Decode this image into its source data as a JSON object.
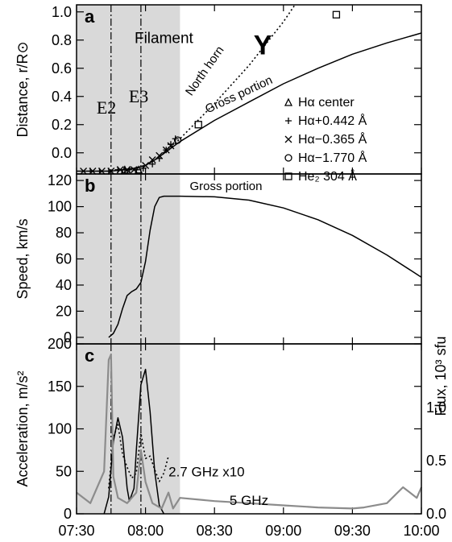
{
  "chart_data": {
    "type": "line",
    "x_tick_labels": [
      "07:30",
      "08:00",
      "08:30",
      "09:00",
      "09:30",
      "10:00"
    ],
    "x_range": [
      "07:30",
      "10:00"
    ],
    "shaded_interval": [
      "07:30",
      "08:15"
    ],
    "event_lines": [
      {
        "label": "E2",
        "time": "07:45"
      },
      {
        "label": "E3",
        "time": "07:58"
      }
    ],
    "panels": [
      {
        "label": "a",
        "ylabel": "Distance, r/R⊙",
        "ylim": [
          -0.15,
          1.05
        ],
        "y_tick_labels": [
          "0.0",
          "0.2",
          "0.4",
          "0.6",
          "0.8",
          "1.0"
        ],
        "annotations": [
          "Filament",
          "E2",
          "E3",
          "Y",
          "North horn",
          "Gross portion"
        ],
        "series": [
          {
            "name": "Gross portion",
            "style": "solid",
            "x": [
              "07:30",
              "07:45",
              "07:55",
              "08:00",
              "08:05",
              "08:10",
              "08:15",
              "08:30",
              "08:45",
              "09:00",
              "09:15",
              "09:30",
              "09:45",
              "10:00"
            ],
            "y": [
              -0.13,
              -0.13,
              -0.11,
              -0.09,
              -0.04,
              0.02,
              0.08,
              0.23,
              0.36,
              0.49,
              0.6,
              0.7,
              0.78,
              0.85
            ]
          },
          {
            "name": "North horn",
            "style": "dotted",
            "x": [
              "07:55",
              "08:00",
              "08:05",
              "08:10",
              "08:15",
              "08:30",
              "08:45",
              "09:00",
              "09:05"
            ],
            "y": [
              -0.11,
              -0.09,
              -0.04,
              0.02,
              0.1,
              0.35,
              0.62,
              0.93,
              1.05
            ]
          }
        ],
        "observations": {
          "legend": [
            {
              "symbol": "triangle",
              "label": "Hα center"
            },
            {
              "symbol": "plus",
              "label": "Hα+0.442 Å"
            },
            {
              "symbol": "cross",
              "label": "Hα−0.365 Å"
            },
            {
              "symbol": "circle",
              "label": "Hα−1.770 Å"
            },
            {
              "symbol": "square",
              "label": "He₂ 304 Å"
            }
          ],
          "plus": {
            "x": [
              "07:36",
              "07:40",
              "07:44",
              "07:48",
              "07:51",
              "07:53",
              "07:56",
              "07:59",
              "08:03",
              "08:06",
              "08:09",
              "08:11",
              "08:13"
            ],
            "y": [
              -0.13,
              -0.13,
              -0.13,
              -0.12,
              -0.12,
              -0.12,
              -0.12,
              -0.11,
              -0.08,
              -0.04,
              0.02,
              0.06,
              0.1
            ]
          },
          "cross": {
            "x": [
              "07:33",
              "07:37",
              "07:41",
              "07:45",
              "07:49",
              "07:52",
              "07:55",
              "08:00",
              "08:03",
              "08:06",
              "08:09",
              "08:11"
            ],
            "y": [
              -0.13,
              -0.13,
              -0.13,
              -0.13,
              -0.12,
              -0.12,
              -0.12,
              -0.09,
              -0.05,
              -0.02,
              0.02,
              0.05
            ]
          },
          "triangle": {
            "x": [
              "07:51",
              "07:57"
            ],
            "y": [
              -0.12,
              -0.12
            ]
          },
          "circle": {
            "x": [
              "08:14"
            ],
            "y": [
              0.09
            ]
          },
          "square": {
            "x": [
              "08:23",
              "09:23"
            ],
            "y": [
              0.2,
              0.98
            ]
          }
        }
      },
      {
        "label": "b",
        "ylabel": "Speed, km/s",
        "ylim": [
          -5,
          125
        ],
        "y_tick_labels": [
          "0",
          "20",
          "40",
          "60",
          "80",
          "100",
          "120"
        ],
        "annotations": [
          "Gross portion"
        ],
        "series": [
          {
            "name": "Gross portion",
            "style": "solid",
            "x": [
              "07:44",
              "07:46",
              "07:48",
              "07:50",
              "07:52",
              "07:54",
              "07:56",
              "07:58",
              "08:00",
              "08:02",
              "08:04",
              "08:06",
              "08:08",
              "08:15",
              "08:30",
              "08:45",
              "09:00",
              "09:15",
              "09:30",
              "09:45",
              "10:00"
            ],
            "y": [
              0,
              3,
              10,
              22,
              32,
              35,
              37,
              42,
              58,
              82,
              100,
              107,
              108,
              108,
              107.5,
              105,
              99,
              90,
              78,
              63,
              46
            ]
          }
        ]
      },
      {
        "label": "c",
        "ylabel": "Acceleration, m/s²",
        "ylim": [
          0,
          200
        ],
        "y_tick_labels": [
          "0",
          "50",
          "100",
          "150",
          "200"
        ],
        "right_axis": {
          "ylabel": "Flux, 10³ sfu",
          "ylim": [
            0,
            1.6
          ],
          "y_tick_labels": [
            "0.0",
            "0.5",
            "1.0"
          ]
        },
        "annotations": [
          "2.7 GHz  x10",
          "5 GHz"
        ],
        "series": [
          {
            "name": "acceleration",
            "style": "solid",
            "axis": "left",
            "x": [
              "07:42",
              "07:44",
              "07:46",
              "07:48",
              "07:50",
              "07:52",
              "07:53",
              "07:55",
              "07:56",
              "07:58",
              "08:00",
              "08:02",
              "08:04",
              "08:06",
              "08:08"
            ],
            "y": [
              0,
              20,
              85,
              113,
              90,
              30,
              15,
              30,
              75,
              152,
              170,
              120,
              50,
              10,
              0
            ]
          },
          {
            "name": "2.7 GHz  x10",
            "style": "dotted",
            "axis": "left",
            "x": [
              "07:44",
              "07:45",
              "07:46",
              "07:48",
              "07:50",
              "07:52",
              "07:54",
              "07:56",
              "07:58",
              "07:59",
              "08:00",
              "08:02",
              "08:04",
              "08:06",
              "08:08",
              "08:10"
            ],
            "y": [
              30,
              60,
              90,
              105,
              70,
              55,
              42,
              48,
              95,
              80,
              65,
              68,
              52,
              38,
              48,
              68
            ]
          },
          {
            "name": "5 GHz",
            "style": "solid",
            "color": "#8c8c8c",
            "axis": "right",
            "x": [
              "07:30",
              "07:36",
              "07:42",
              "07:44",
              "07:45",
              "07:46",
              "07:48",
              "07:52",
              "07:56",
              "07:58",
              "08:00",
              "08:03",
              "08:07",
              "08:10",
              "08:12",
              "08:15",
              "08:30",
              "08:45",
              "09:00",
              "09:15",
              "09:30",
              "09:35",
              "09:45",
              "09:52",
              "09:58",
              "10:00"
            ],
            "y": [
              0.2,
              0.1,
              0.4,
              1.45,
              1.5,
              0.35,
              0.15,
              0.1,
              0.2,
              0.6,
              0.3,
              0.1,
              0.05,
              0.2,
              0.05,
              0.15,
              0.12,
              0.1,
              0.08,
              0.06,
              0.05,
              0.06,
              0.1,
              0.25,
              0.15,
              0.25
            ]
          }
        ]
      }
    ]
  }
}
